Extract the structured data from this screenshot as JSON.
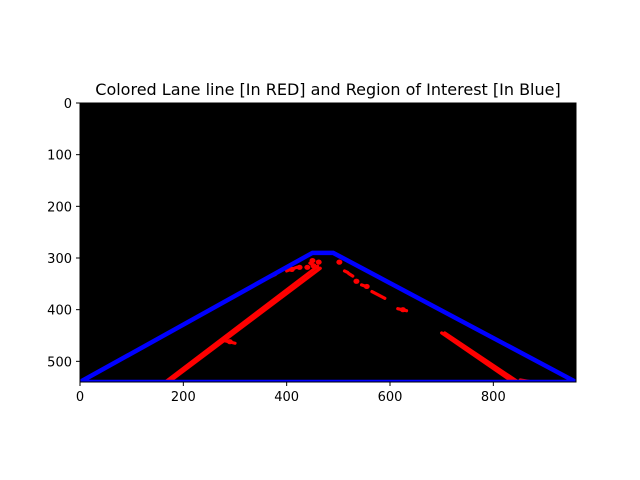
{
  "chart_data": {
    "type": "image",
    "title": "Colored Lane line [In RED] and Region of Interest [In Blue]",
    "xlabel": "",
    "ylabel": "",
    "xlim": [
      0,
      960
    ],
    "ylim": [
      540,
      0
    ],
    "y_inverted": true,
    "background_color": "#000000",
    "x_ticks": [
      0,
      200,
      400,
      600,
      800
    ],
    "y_ticks": [
      0,
      100,
      200,
      300,
      400,
      500
    ],
    "region_of_interest": {
      "name": "Region of Interest",
      "color": "#0000ff",
      "vertices": [
        [
          0,
          540
        ],
        [
          450,
          290
        ],
        [
          490,
          290
        ],
        [
          960,
          540
        ]
      ]
    },
    "lane_segments": {
      "name": "Lane line",
      "color": "#ff0000",
      "segments": [
        [
          [
            165,
            540
          ],
          [
            460,
            316
          ]
        ],
        [
          [
            172,
            540
          ],
          [
            465,
            320
          ]
        ],
        [
          [
            700,
            445
          ],
          [
            838,
            540
          ]
        ],
        [
          [
            706,
            445
          ],
          [
            848,
            540
          ]
        ],
        [
          [
            852,
            536
          ],
          [
            875,
            540
          ]
        ],
        [
          [
            360,
            340
          ],
          [
            378,
            332
          ]
        ],
        [
          [
            400,
            325
          ],
          [
            420,
            318
          ]
        ],
        [
          [
            565,
            365
          ],
          [
            590,
            378
          ]
        ],
        [
          [
            545,
            352
          ],
          [
            556,
            356
          ]
        ],
        [
          [
            520,
            330
          ],
          [
            528,
            335
          ]
        ],
        [
          [
            512,
            325
          ],
          [
            518,
            328
          ]
        ],
        [
          [
            615,
            398
          ],
          [
            632,
            402
          ]
        ],
        [
          [
            280,
            460
          ],
          [
            300,
            465
          ]
        ],
        [
          [
            445,
            310
          ],
          [
            460,
            318
          ]
        ]
      ],
      "blobs": [
        [
          450,
          305
        ],
        [
          462,
          308
        ],
        [
          452,
          315
        ],
        [
          440,
          318
        ],
        [
          425,
          318
        ],
        [
          410,
          322
        ],
        [
          502,
          308
        ],
        [
          535,
          345
        ],
        [
          555,
          355
        ],
        [
          625,
          400
        ],
        [
          290,
          462
        ]
      ]
    }
  }
}
